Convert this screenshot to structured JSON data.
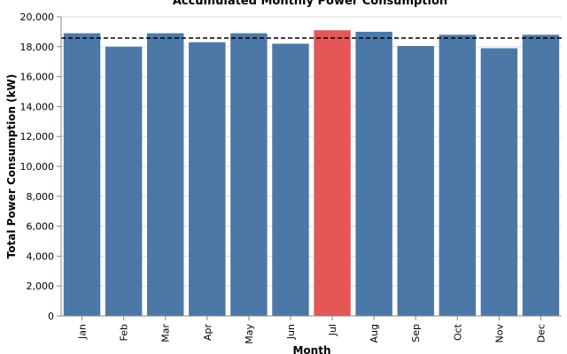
{
  "chart_data": {
    "type": "bar",
    "title": "Accumulated Monthly Power Consumption",
    "xlabel": "Month",
    "ylabel": "Total Power Consumption (kW)",
    "categories": [
      "Jan",
      "Feb",
      "Mar",
      "Apr",
      "May",
      "Jun",
      "Jul",
      "Aug",
      "Sep",
      "Oct",
      "Nov",
      "Dec"
    ],
    "values": [
      18900,
      18000,
      18900,
      18300,
      18900,
      18200,
      19100,
      19000,
      18050,
      18800,
      17900,
      18800
    ],
    "highlight_category": "Jul",
    "ylim": [
      0,
      20000
    ],
    "yticks": [
      0,
      2000,
      4000,
      6000,
      8000,
      10000,
      12000,
      14000,
      16000,
      18000,
      20000
    ],
    "ytick_labels": [
      "0",
      "2,000",
      "4,000",
      "6,000",
      "8,000",
      "10,000",
      "12,000",
      "14,000",
      "16,000",
      "18,000",
      "20,000"
    ],
    "reference_line": {
      "value": 18580,
      "style": "dashed"
    },
    "grid": true,
    "colors": {
      "bar": "#4c78a8",
      "highlight": "#e45756",
      "grid": "#dddddd",
      "axis": "#888888",
      "reference": "#000000"
    }
  }
}
